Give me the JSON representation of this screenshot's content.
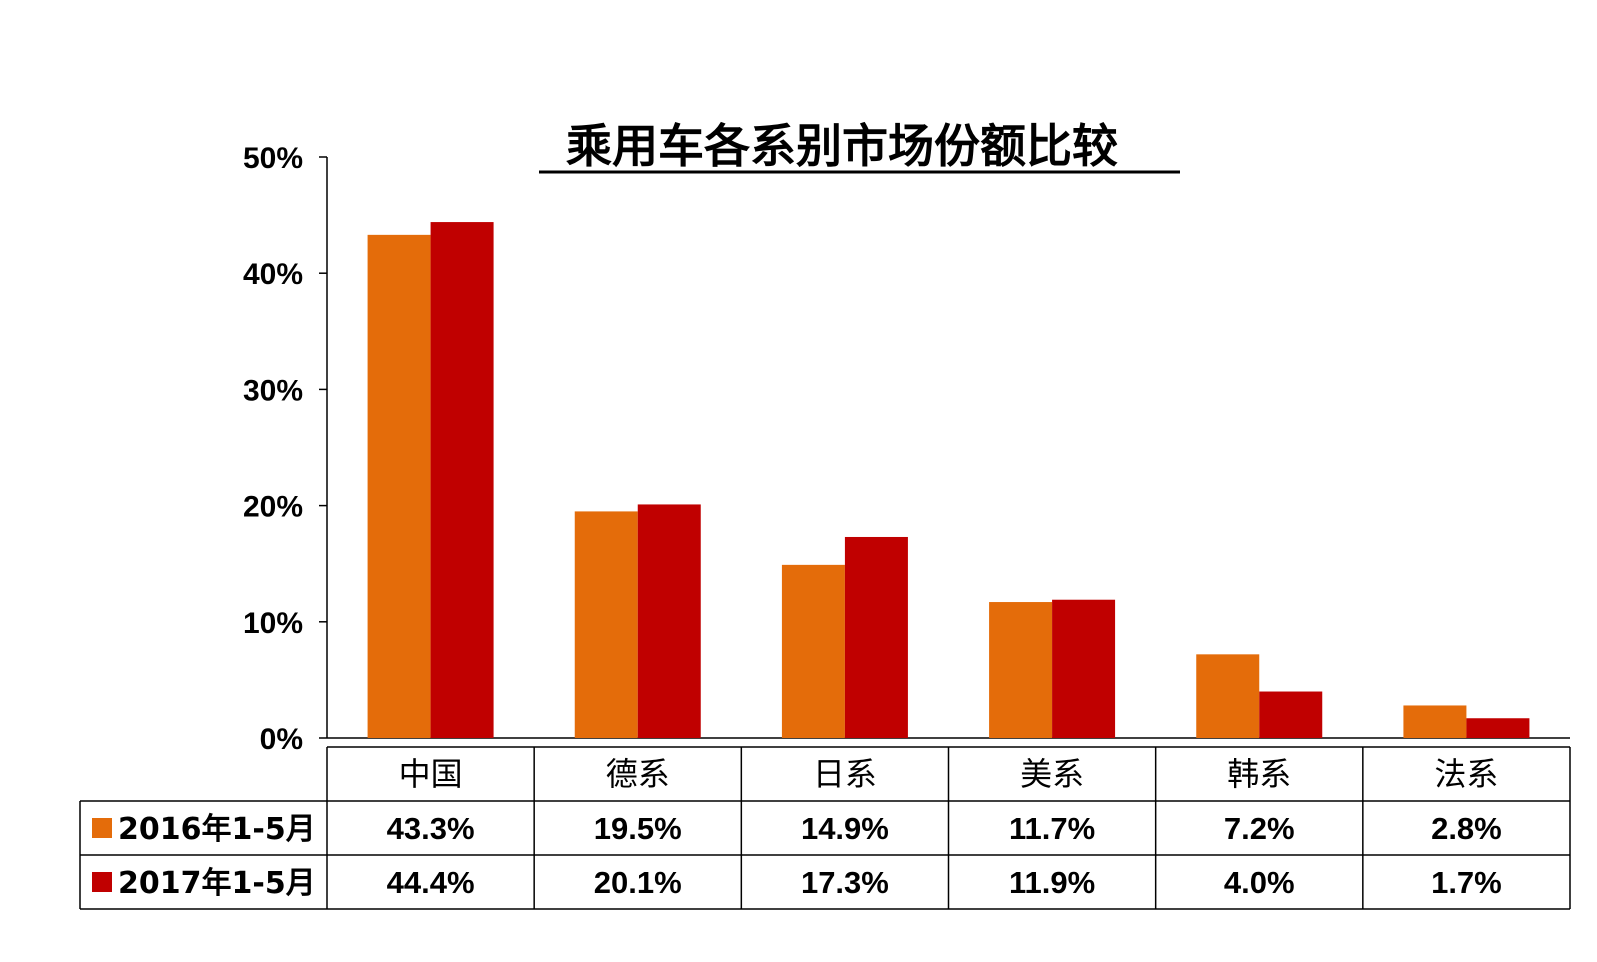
{
  "chart_data": {
    "type": "bar",
    "title": "乘用车各系别市场份额比较",
    "categories": [
      "中国",
      "德系",
      "日系",
      "美系",
      "韩系",
      "法系"
    ],
    "series": [
      {
        "name": "2016年1-5月",
        "color": "#E46C0A",
        "values": [
          43.3,
          19.5,
          14.9,
          11.7,
          7.2,
          2.8
        ],
        "labels": [
          "43.3%",
          "19.5%",
          "14.9%",
          "11.7%",
          "7.2%",
          "2.8%"
        ]
      },
      {
        "name": "2017年1-5月",
        "color": "#C00000",
        "values": [
          44.4,
          20.1,
          17.3,
          11.9,
          4.0,
          1.7
        ],
        "labels": [
          "44.4%",
          "20.1%",
          "17.3%",
          "11.9%",
          "4.0%",
          "1.7%"
        ]
      }
    ],
    "ylim": [
      0,
      50
    ],
    "yticks": [
      0,
      10,
      20,
      30,
      40,
      50
    ],
    "ytick_labels": [
      "0%",
      "10%",
      "20%",
      "30%",
      "40%",
      "50%"
    ],
    "xlabel": "",
    "ylabel": "",
    "grid": false,
    "legend": "data-table"
  }
}
